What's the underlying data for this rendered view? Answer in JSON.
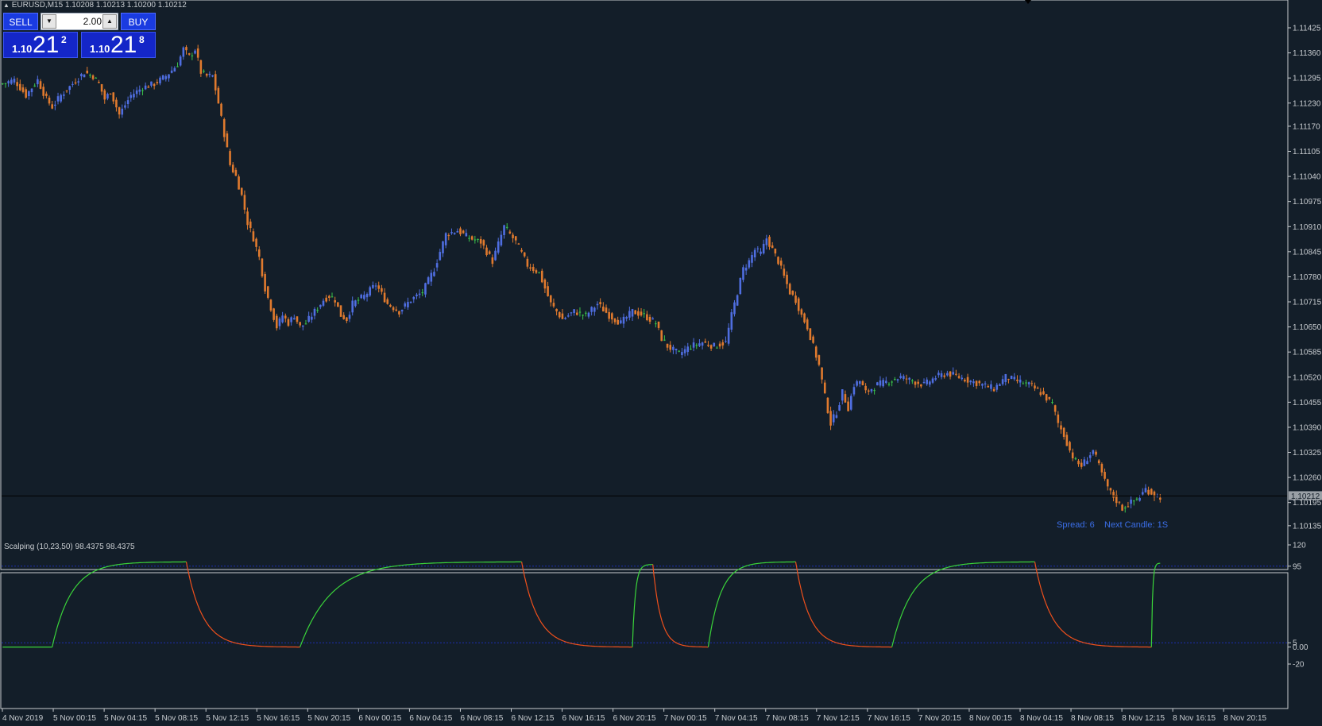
{
  "window": {
    "symbol_title": "EURUSD,M15  1.10208 1.10213 1.10200 1.10212",
    "indicator_title": "Scalping (10,23,50) 98.4375 98.4375"
  },
  "trade_panel": {
    "sell_label": "SELL",
    "buy_label": "BUY",
    "lot_value": "2.00",
    "sell_price": {
      "prefix": "1.10",
      "big": "21",
      "sup": "2"
    },
    "buy_price": {
      "prefix": "1.10",
      "big": "21",
      "sup": "8"
    }
  },
  "status": {
    "spread": "Spread: 6",
    "next_candle": "Next Candle: 1S"
  },
  "colors": {
    "background": "#131e29",
    "bull_candle": "#4f6ee0",
    "bear_candle": "#e07a2e",
    "doji_candle": "#39c24a",
    "osc_up": "#3ad43a",
    "osc_down": "#f0501c",
    "level_line": "#1c2fb0",
    "axis_text": "#c8ccd0",
    "price_tag": "#9aa0a6"
  },
  "chart_data": [
    {
      "type": "candlestick",
      "symbol": "EURUSD",
      "timeframe": "M15",
      "ylim": [
        1.1011,
        1.1146
      ],
      "y_ticks": [
        "1.11425",
        "1.11360",
        "1.11295",
        "1.11230",
        "1.11170",
        "1.11105",
        "1.11040",
        "1.10975",
        "1.10910",
        "1.10845",
        "1.10780",
        "1.10715",
        "1.10650",
        "1.10585",
        "1.10520",
        "1.10455",
        "1.10390",
        "1.10325",
        "1.10260",
        "1.10195",
        "1.10135"
      ],
      "current_price": "1.10212",
      "x_ticks": [
        "4 Nov 2019",
        "5 Nov 00:15",
        "5 Nov 04:15",
        "5 Nov 08:15",
        "5 Nov 12:15",
        "5 Nov 16:15",
        "5 Nov 20:15",
        "6 Nov 00:15",
        "6 Nov 04:15",
        "6 Nov 08:15",
        "6 Nov 12:15",
        "6 Nov 16:15",
        "6 Nov 20:15",
        "7 Nov 00:15",
        "7 Nov 04:15",
        "7 Nov 08:15",
        "7 Nov 12:15",
        "7 Nov 16:15",
        "7 Nov 20:15",
        "8 Nov 00:15",
        "8 Nov 04:15",
        "8 Nov 08:15",
        "8 Nov 12:15",
        "8 Nov 16:15",
        "8 Nov 20:15"
      ],
      "close_path": [
        [
          0,
          1.1128
        ],
        [
          4,
          1.1129
        ],
        [
          8,
          1.1125
        ],
        [
          12,
          1.1129
        ],
        [
          15,
          1.1124
        ],
        [
          17,
          1.1122
        ],
        [
          20,
          1.1125
        ],
        [
          24,
          1.1128
        ],
        [
          28,
          1.1131
        ],
        [
          31,
          1.113
        ],
        [
          33,
          1.1128
        ],
        [
          35,
          1.1124
        ],
        [
          37,
          1.1126
        ],
        [
          40,
          1.112
        ],
        [
          44,
          1.1125
        ],
        [
          48,
          1.1127
        ],
        [
          52,
          1.1128
        ],
        [
          56,
          1.113
        ],
        [
          60,
          1.1133
        ],
        [
          62,
          1.1137
        ],
        [
          64,
          1.1135
        ],
        [
          66,
          1.1137
        ],
        [
          68,
          1.1131
        ],
        [
          70,
          1.113
        ],
        [
          72,
          1.113
        ],
        [
          74,
          1.1123
        ],
        [
          76,
          1.1115
        ],
        [
          78,
          1.1107
        ],
        [
          80,
          1.1104
        ],
        [
          82,
          1.1099
        ],
        [
          84,
          1.1092
        ],
        [
          86,
          1.1088
        ],
        [
          88,
          1.1083
        ],
        [
          90,
          1.1075
        ],
        [
          92,
          1.107
        ],
        [
          94,
          1.1065
        ],
        [
          96,
          1.1068
        ],
        [
          98,
          1.1066
        ],
        [
          100,
          1.1068
        ],
        [
          102,
          1.1065
        ],
        [
          104,
          1.1066
        ],
        [
          106,
          1.1068
        ],
        [
          108,
          1.107
        ],
        [
          110,
          1.1072
        ],
        [
          112,
          1.1073
        ],
        [
          114,
          1.1072
        ],
        [
          116,
          1.1068
        ],
        [
          118,
          1.1067
        ],
        [
          120,
          1.1071
        ],
        [
          124,
          1.1073
        ],
        [
          128,
          1.1076
        ],
        [
          132,
          1.1071
        ],
        [
          136,
          1.1069
        ],
        [
          140,
          1.1072
        ],
        [
          144,
          1.1074
        ],
        [
          148,
          1.108
        ],
        [
          152,
          1.1089
        ],
        [
          156,
          1.109
        ],
        [
          160,
          1.1088
        ],
        [
          164,
          1.1087
        ],
        [
          168,
          1.1082
        ],
        [
          172,
          1.1091
        ],
        [
          176,
          1.1087
        ],
        [
          180,
          1.1081
        ],
        [
          184,
          1.1079
        ],
        [
          188,
          1.1071
        ],
        [
          192,
          1.1067
        ],
        [
          196,
          1.1069
        ],
        [
          200,
          1.1068
        ],
        [
          204,
          1.1071
        ],
        [
          208,
          1.1068
        ],
        [
          212,
          1.1066
        ],
        [
          216,
          1.1069
        ],
        [
          220,
          1.1068
        ],
        [
          224,
          1.1066
        ],
        [
          226,
          1.1062
        ],
        [
          228,
          1.106
        ],
        [
          232,
          1.1058
        ],
        [
          236,
          1.106
        ],
        [
          240,
          1.1061
        ],
        [
          244,
          1.106
        ],
        [
          248,
          1.1061
        ],
        [
          250,
          1.1068
        ],
        [
          252,
          1.1074
        ],
        [
          254,
          1.108
        ],
        [
          256,
          1.1082
        ],
        [
          258,
          1.1085
        ],
        [
          260,
          1.1084
        ],
        [
          262,
          1.1088
        ],
        [
          264,
          1.1085
        ],
        [
          266,
          1.1082
        ],
        [
          268,
          1.1078
        ],
        [
          270,
          1.1074
        ],
        [
          272,
          1.1072
        ],
        [
          274,
          1.1068
        ],
        [
          276,
          1.1065
        ],
        [
          278,
          1.106
        ],
        [
          280,
          1.1055
        ],
        [
          282,
          1.1047
        ],
        [
          284,
          1.104
        ],
        [
          286,
          1.1043
        ],
        [
          288,
          1.1048
        ],
        [
          290,
          1.1044
        ],
        [
          292,
          1.105
        ],
        [
          294,
          1.1051
        ],
        [
          296,
          1.1048
        ],
        [
          298,
          1.1049
        ],
        [
          300,
          1.105
        ],
        [
          304,
          1.1051
        ],
        [
          308,
          1.1052
        ],
        [
          312,
          1.1051
        ],
        [
          316,
          1.105
        ],
        [
          320,
          1.1052
        ],
        [
          324,
          1.1053
        ],
        [
          328,
          1.1052
        ],
        [
          332,
          1.1051
        ],
        [
          336,
          1.105
        ],
        [
          340,
          1.1049
        ],
        [
          344,
          1.1052
        ],
        [
          348,
          1.1051
        ],
        [
          352,
          1.105
        ],
        [
          356,
          1.1048
        ],
        [
          360,
          1.1045
        ],
        [
          362,
          1.104
        ],
        [
          364,
          1.1037
        ],
        [
          366,
          1.1033
        ],
        [
          368,
          1.103
        ],
        [
          370,
          1.1029
        ],
        [
          372,
          1.1031
        ],
        [
          374,
          1.1033
        ],
        [
          376,
          1.1029
        ],
        [
          378,
          1.1025
        ],
        [
          380,
          1.1022
        ],
        [
          382,
          1.102
        ],
        [
          384,
          1.1018
        ],
        [
          386,
          1.1019
        ],
        [
          388,
          1.102
        ],
        [
          390,
          1.1021
        ],
        [
          392,
          1.1023
        ],
        [
          394,
          1.1022
        ],
        [
          396,
          1.1021
        ],
        [
          397,
          1.1021
        ]
      ]
    },
    {
      "type": "line",
      "name": "Scalping (10,23,50)",
      "ylim": [
        -20,
        120
      ],
      "y_ticks": [
        "120",
        "95",
        "5",
        "0.00",
        "-20"
      ],
      "levels": [
        95,
        5
      ],
      "last_value": "98.4375",
      "segments": [
        {
          "from": 0,
          "to": 17,
          "from_value": 0,
          "to_value": 0,
          "dir": "flat"
        },
        {
          "from": 17,
          "to": 63,
          "from_value": 0,
          "to_value": 100,
          "dir": "up"
        },
        {
          "from": 63,
          "to": 102,
          "from_value": 100,
          "to_value": 0,
          "dir": "down"
        },
        {
          "from": 102,
          "to": 178,
          "from_value": 0,
          "to_value": 100,
          "dir": "up"
        },
        {
          "from": 178,
          "to": 216,
          "from_value": 100,
          "to_value": 0,
          "dir": "down"
        },
        {
          "from": 216,
          "to": 223,
          "from_value": 0,
          "to_value": 97,
          "dir": "up"
        },
        {
          "from": 223,
          "to": 242,
          "from_value": 97,
          "to_value": 0,
          "dir": "down"
        },
        {
          "from": 242,
          "to": 272,
          "from_value": 0,
          "to_value": 100,
          "dir": "up"
        },
        {
          "from": 272,
          "to": 305,
          "from_value": 100,
          "to_value": 0,
          "dir": "down"
        },
        {
          "from": 305,
          "to": 354,
          "from_value": 0,
          "to_value": 100,
          "dir": "up"
        },
        {
          "from": 354,
          "to": 394,
          "from_value": 100,
          "to_value": 0,
          "dir": "down"
        },
        {
          "from": 394,
          "to": 397,
          "from_value": 0,
          "to_value": 98.4375,
          "dir": "up"
        }
      ]
    }
  ]
}
